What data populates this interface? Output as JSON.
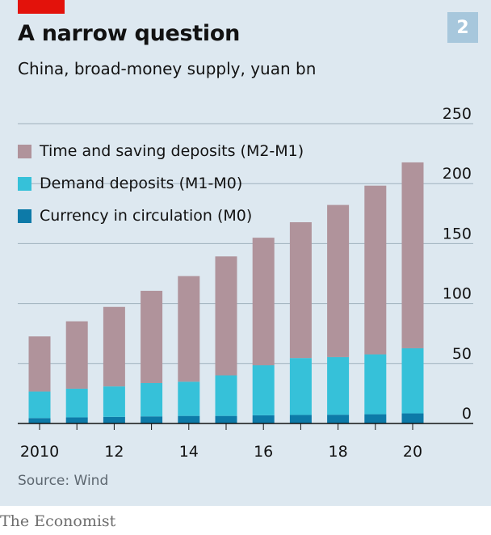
{
  "header": {
    "title": "A narrow question",
    "subtitle": "China, broad-money supply, yuan bn",
    "badge": "2"
  },
  "footer": {
    "source": "Source: Wind",
    "brand": "The Economist"
  },
  "colors": {
    "time_saving": "#b0939b",
    "demand": "#36c1d9",
    "currency": "#0d7aa8",
    "grid": "#9fb1bd",
    "axis": "#121212"
  },
  "chart_data": {
    "type": "bar",
    "stacked": true,
    "categories": [
      "2010",
      "2011",
      "2012",
      "2013",
      "2014",
      "2015",
      "2016",
      "2017",
      "2018",
      "2019",
      "2020"
    ],
    "x_tick_labels": [
      "2010",
      "",
      "12",
      "",
      "14",
      "",
      "16",
      "",
      "18",
      "",
      "20"
    ],
    "y_ticks": [
      0,
      50,
      100,
      150,
      200,
      250
    ],
    "ylim": [
      0,
      250
    ],
    "legend_position": "top-left",
    "series": [
      {
        "name": "Currency in circulation (M0)",
        "values": [
          4.5,
          5.1,
          5.5,
          5.9,
          6.3,
          6.3,
          6.8,
          7.1,
          7.3,
          7.7,
          8.4
        ]
      },
      {
        "name": "Demand deposits (M1-M0)",
        "values": [
          22.1,
          23.9,
          25.4,
          27.8,
          28.5,
          33.8,
          41.7,
          47.4,
          48.0,
          49.9,
          54.3
        ]
      },
      {
        "name": "Time and saving deposits (M2-M1)",
        "values": [
          46.0,
          56.2,
          66.3,
          76.9,
          88.1,
          99.2,
          106.4,
          113.3,
          126.9,
          140.7,
          155.0
        ]
      }
    ]
  }
}
